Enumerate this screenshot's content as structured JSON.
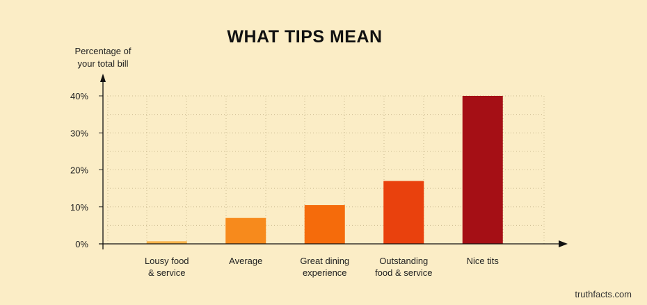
{
  "chart_data": {
    "type": "bar",
    "title": "WHAT TIPS MEAN",
    "ylabel": [
      "Percentage of",
      "your total bill"
    ],
    "xlabel": "",
    "categories": [
      [
        "Lousy food",
        "& service"
      ],
      [
        "Average"
      ],
      [
        "Great dining",
        "experience"
      ],
      [
        "Outstanding",
        "food & service"
      ],
      [
        "Nice tits"
      ]
    ],
    "values": [
      0.7,
      7,
      10.5,
      17,
      40
    ],
    "colors": [
      "#f7b34a",
      "#f78a1c",
      "#f56b0b",
      "#e9410d",
      "#a50f15"
    ],
    "yticks": [
      0,
      10,
      20,
      30,
      40
    ],
    "ytick_labels": [
      "0%",
      "10%",
      "20%",
      "30%",
      "40%"
    ],
    "ylim": [
      0,
      40
    ],
    "grid": true,
    "source": "truthfacts.com"
  }
}
